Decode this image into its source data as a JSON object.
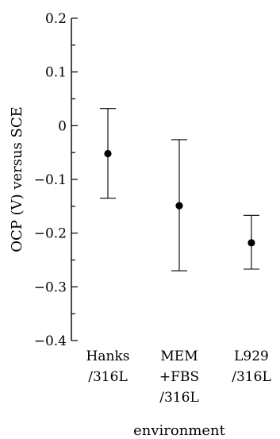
{
  "chart_data": {
    "type": "scatter",
    "xlabel": "environment",
    "ylabel": "OCP (V)  versus SCE",
    "ylim": [
      -0.4,
      0.2
    ],
    "yticks": [
      0.2,
      0.1,
      0,
      -0.1,
      -0.2,
      -0.3,
      -0.4
    ],
    "ytick_labels": [
      "0.2",
      "0.1",
      "0",
      "−0.1",
      "−0.2",
      "−0.3",
      "−0.4"
    ],
    "categories": [
      [
        "Hanks",
        "/316L"
      ],
      [
        "MEM",
        "+FBS",
        "/316L"
      ],
      [
        "L929",
        "/316L"
      ]
    ],
    "series": [
      {
        "values": [
          -0.052,
          -0.149,
          -0.218
        ],
        "error_high": [
          0.032,
          -0.026,
          -0.167
        ],
        "error_low": [
          -0.135,
          -0.27,
          -0.267
        ]
      }
    ],
    "marker_color": "#000000",
    "grid": false
  }
}
